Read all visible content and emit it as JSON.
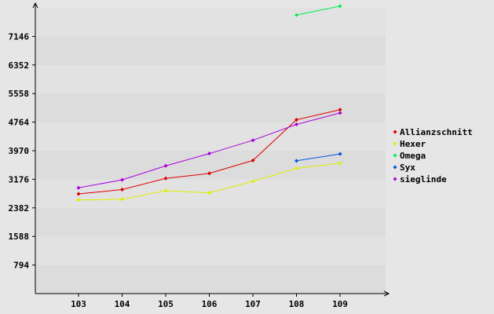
{
  "chart_data": {
    "type": "line",
    "title": "",
    "xlabel": "",
    "ylabel": "",
    "categories": [
      "103",
      "104",
      "105",
      "106",
      "107",
      "108",
      "109"
    ],
    "yticks": [
      794,
      1588,
      2382,
      3176,
      3970,
      4764,
      5558,
      6352,
      7146
    ],
    "ylim": [
      0,
      7940
    ],
    "grid": true,
    "legend_position": "right",
    "series": [
      {
        "name": "Allianzschnitt",
        "color": "#dd0000",
        "values": [
          2770,
          2890,
          3200,
          3340,
          3700,
          4830,
          5110
        ]
      },
      {
        "name": "Hexer",
        "color": "#ddee00",
        "values": [
          2600,
          2620,
          2860,
          2800,
          3120,
          3480,
          3620
        ]
      },
      {
        "name": "Omega",
        "color": "#00ee55",
        "values": [
          null,
          null,
          null,
          null,
          null,
          7740,
          7990
        ]
      },
      {
        "name": "Syx",
        "color": "#0055dd",
        "values": [
          null,
          null,
          null,
          null,
          null,
          3690,
          3880
        ]
      },
      {
        "name": "sieglinde",
        "color": "#aa00dd",
        "values": [
          2940,
          3160,
          3550,
          3890,
          4260,
          4700,
          5020
        ]
      }
    ]
  }
}
